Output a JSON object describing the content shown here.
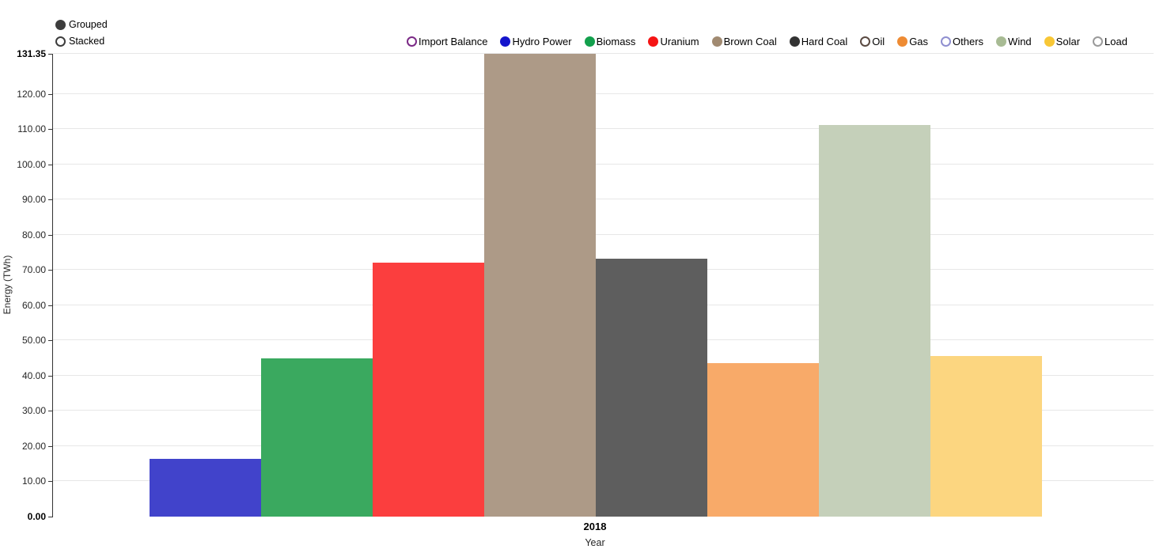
{
  "controls": {
    "options": [
      {
        "label": "Grouped",
        "selected": true
      },
      {
        "label": "Stacked",
        "selected": false
      }
    ]
  },
  "chart_data": {
    "type": "bar",
    "mode": "Grouped",
    "title": "",
    "xlabel": "Year",
    "ylabel": "Energy (TWh)",
    "categories": [
      "2018"
    ],
    "ylim": [
      0,
      131.35
    ],
    "grid": true,
    "legend_position": "top",
    "yticks": [
      {
        "label": "0.00",
        "value": 0,
        "bold": true
      },
      {
        "label": "10.00",
        "value": 10,
        "bold": false
      },
      {
        "label": "20.00",
        "value": 20,
        "bold": false
      },
      {
        "label": "30.00",
        "value": 30,
        "bold": false
      },
      {
        "label": "40.00",
        "value": 40,
        "bold": false
      },
      {
        "label": "50.00",
        "value": 50,
        "bold": false
      },
      {
        "label": "60.00",
        "value": 60,
        "bold": false
      },
      {
        "label": "70.00",
        "value": 70,
        "bold": false
      },
      {
        "label": "80.00",
        "value": 80,
        "bold": false
      },
      {
        "label": "90.00",
        "value": 90,
        "bold": false
      },
      {
        "label": "100.00",
        "value": 100,
        "bold": false
      },
      {
        "label": "110.00",
        "value": 110,
        "bold": false
      },
      {
        "label": "120.00",
        "value": 120,
        "bold": false
      },
      {
        "label": "131.35",
        "value": 131.35,
        "bold": true
      }
    ],
    "series": [
      {
        "name": "Import Balance",
        "marker_color": "#7b2a86",
        "bar_color": null,
        "visible": false,
        "value": null
      },
      {
        "name": "Hydro Power",
        "marker_color": "#1414cc",
        "bar_color": "#4143cb",
        "visible": true,
        "value": 16.5
      },
      {
        "name": "Biomass",
        "marker_color": "#13a04d",
        "bar_color": "#3aa95f",
        "visible": true,
        "value": 44.8
      },
      {
        "name": "Uranium",
        "marker_color": "#f51414",
        "bar_color": "#fb3e3e",
        "visible": true,
        "value": 72.0
      },
      {
        "name": "Brown Coal",
        "marker_color": "#a18a71",
        "bar_color": "#ad9a87",
        "visible": true,
        "value": 131.35
      },
      {
        "name": "Hard Coal",
        "marker_color": "#333333",
        "bar_color": "#5e5e5e",
        "visible": true,
        "value": 73.2
      },
      {
        "name": "Oil",
        "marker_color": "#5a4a42",
        "bar_color": null,
        "visible": false,
        "value": null
      },
      {
        "name": "Gas",
        "marker_color": "#ee8b33",
        "bar_color": "#f8aa69",
        "visible": true,
        "value": 43.5
      },
      {
        "name": "Others",
        "marker_color": "#8f8fd0",
        "bar_color": null,
        "visible": false,
        "value": null
      },
      {
        "name": "Wind",
        "marker_color": "#a8bb94",
        "bar_color": "#c5d0ba",
        "visible": true,
        "value": 111.2
      },
      {
        "name": "Solar",
        "marker_color": "#f8c736",
        "bar_color": "#fcd680",
        "visible": true,
        "value": 45.5
      },
      {
        "name": "Load",
        "marker_color": "#9a9a9a",
        "bar_color": null,
        "visible": false,
        "value": null
      }
    ]
  }
}
